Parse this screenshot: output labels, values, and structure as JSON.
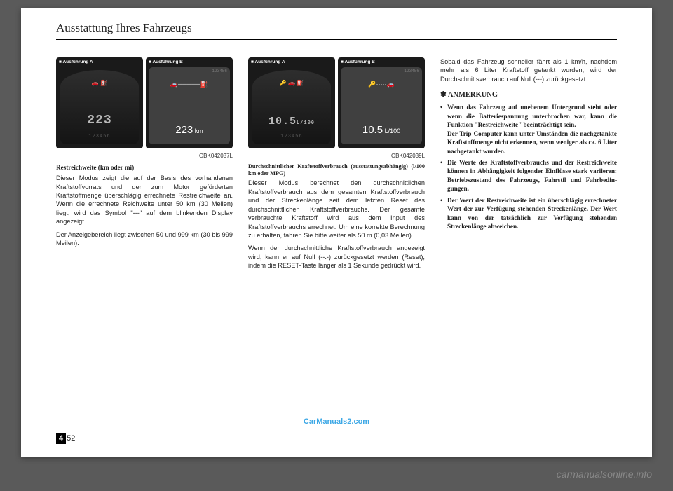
{
  "header": {
    "title": "Ausstattung Ihres Fahrzeugs"
  },
  "col1": {
    "dispA_label": "■ Ausführung A",
    "dispB_label": "■ Ausführung B",
    "dispA_value": "223",
    "dispA_icons": "🚗  ⛽",
    "dispA_small": "123456",
    "dispB_top": "123456",
    "dispB_icons": "🚗─────⛽",
    "dispB_value": "223",
    "dispB_unit": " km",
    "code": "OBK042037L",
    "subhead": "Restreichweite (km oder mi)",
    "p1": "Dieser Modus zeigt die auf der Basis des vorhandenen Kraftstoffvorrats und der zum Motor geförderten Kraftstoffmenge überschlägig errechnete Restreichweite an. Wenn die errechnete Reichweite unter 50 km (30 Meilen) liegt, wird das Symbol \"---\" auf dem blinkenden Display angezeigt.",
    "p2": "Der Anzeigebereich liegt zwischen 50 und 999 km (30 bis 999 Meilen)."
  },
  "col2": {
    "dispA_label": "■ Ausführung A",
    "dispB_label": "■ Ausführung B",
    "dispA_value": "10.5",
    "dispA_unit": "L/100",
    "dispA_icons": "🔑 🚗 ⛽",
    "dispA_small": "123456",
    "dispB_top": "123456",
    "dispB_icons": "🔑·····🚗",
    "dispB_value": "10.5",
    "dispB_unit": " L/100",
    "code": "OBK042039L",
    "subhead": "Durchschnittlicher Kraftstoffverbrauch (ausstattungsabhängig) (l/100 km oder MPG)",
    "p1": "Dieser Modus berechnet den durchschnittlichen Kraftstoffverbrauch aus dem gesamten Kraftstoffverbrauch und der Streckenlänge seit dem letzten Reset des durchschnittlichen Kraftstoffverbrauchs. Der gesamte verbrauchte Kraftstoff wird aus dem Input des Kraftstoffverbrauchs errechnet. Um eine korrekte Berechnung zu erhalten, fahren Sie bitte weiter als 50 m (0,03 Meilen).",
    "p2": "Wenn der durchschnittliche Kraftstoff­verbrauch angezeigt wird, kann er auf Null (--.-) zurückgesetzt werden (Reset), indem die RESET-Taste länger als 1 Sekunde gedrückt wird."
  },
  "col3": {
    "p1": "Sobald das Fahrzeug schneller fährt als 1 km/h, nachdem mehr als 6 Liter Kraftstoff getankt wurden, wird der Durchschnittsverbrauch auf Null (---) zurückgesetzt.",
    "note_head": "✽ ANMERKUNG",
    "b1": "Wenn das Fahrzeug auf unebenem Untergrund steht oder wenn die Batteriespannung unterbrochen war, kann die Funktion \"Restreichweite\" beeinträchtigt sein.",
    "b1b": "Der Trip-Computer kann unter Umständen die nachgetankte Kraftstoffmenge nicht erkennen, wenn weniger als ca. 6 Liter nachgetankt wurden.",
    "b2": "Die Werte des Kraftstoffverbrauchs und der Restreichweite können in Abhängigkeit folgender Einflüsse stark variieren: Betriebszustand des Fahrzeugs, Fahrstil und Fahrbedin­gungen.",
    "b3": "Der Wert der Restreichweite ist ein überschlägig errechneter Wert der zur Verfügung stehenden Stre­ckenlänge. Der Wert kann von der tatsächlich zur Verfügung stehenden Streckenlänge abweichen."
  },
  "footer": {
    "section": "4",
    "page": "52",
    "watermark1": "CarManuals2.com",
    "watermark2": "carmanualsonline.info"
  }
}
